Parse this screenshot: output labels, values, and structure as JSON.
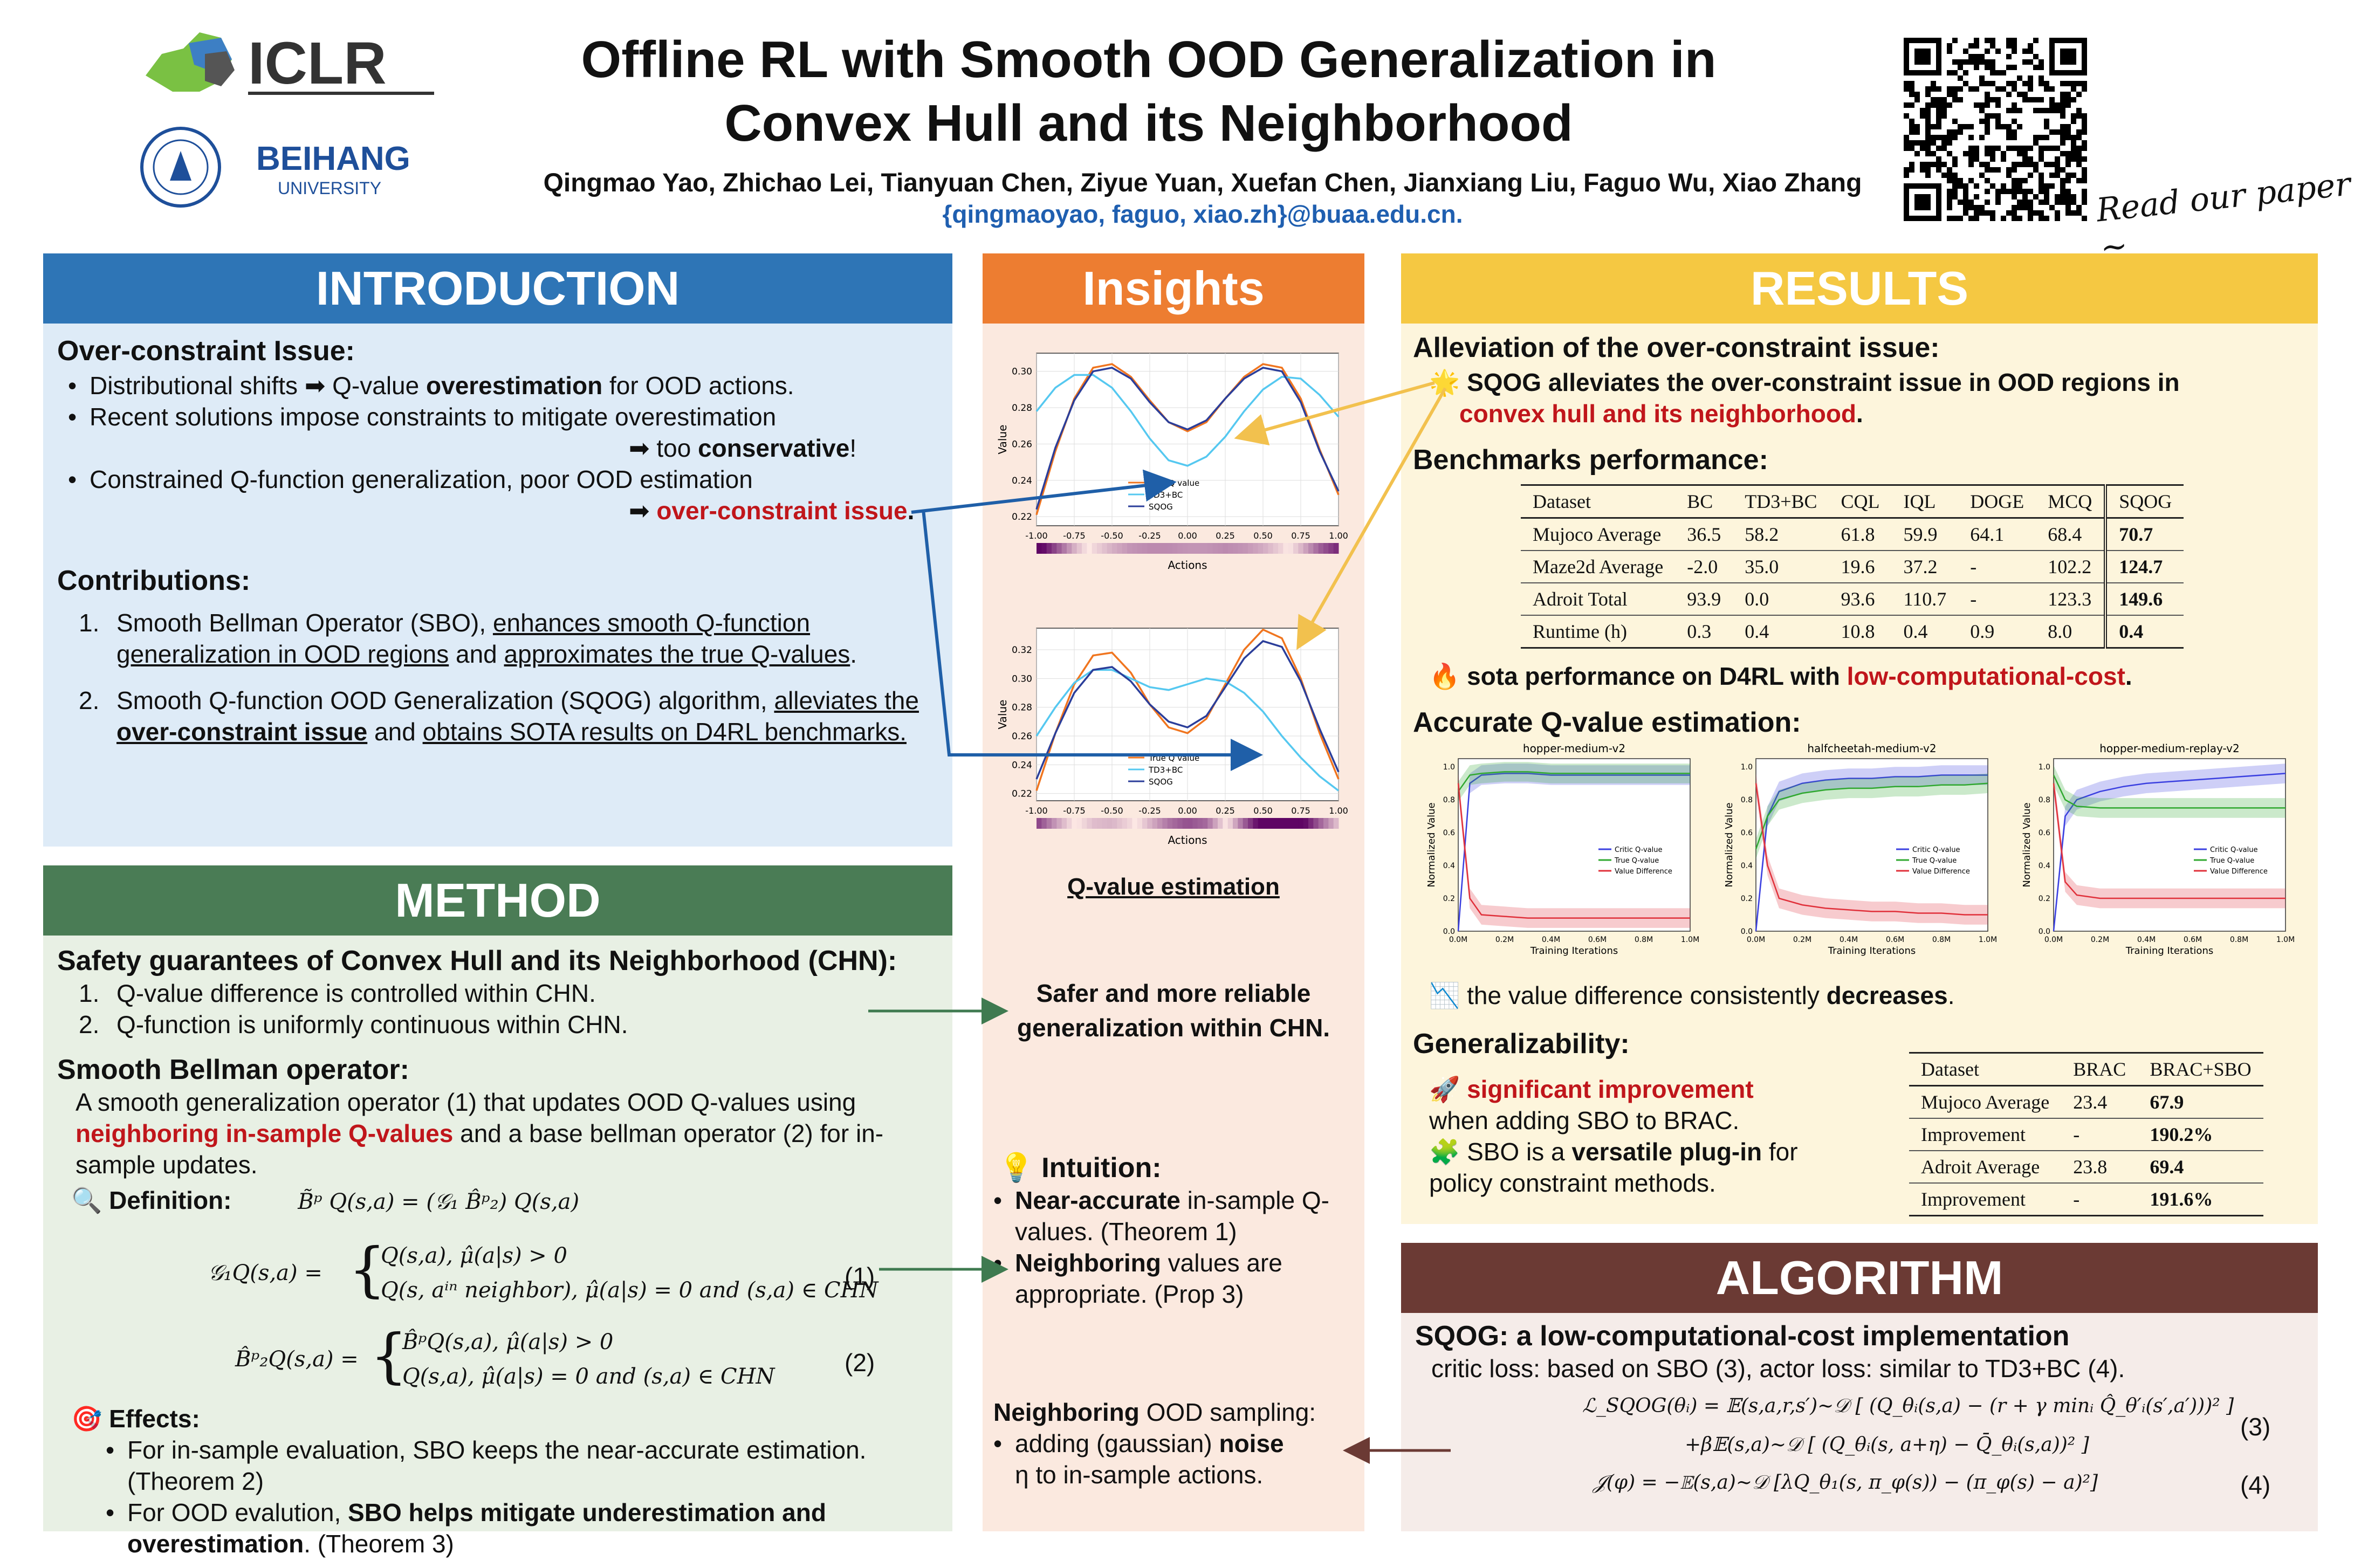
{
  "header": {
    "logo_iclr": "ICLR",
    "logo_beihang": "BEIHANG",
    "logo_beihang_sub": "UNIVERSITY",
    "title_line1": "Offline RL with Smooth OOD Generalization in",
    "title_line2": "Convex Hull and its Neighborhood",
    "authors": "Qingmao Yao, Zhichao Lei, Tianyuan Chen, Ziyue Yuan, Xuefan Chen, Jianxiang Liu, Faguo Wu, Xiao Zhang",
    "email": "{qingmaoyao, faguo, xiao.zh}@buaa.edu.cn.",
    "qr_caption": "Read our paper ~"
  },
  "intro": {
    "title": "INTRODUCTION",
    "issue_title": "Over-constraint Issue:",
    "b1_pre": "Distributional shifts ",
    "b1_post_pre": " Q-value ",
    "b1_bold": "overestimation",
    "b1_end": " for OOD actions.",
    "b2": "Recent solutions impose constraints to mitigate overestimation",
    "b2_arrow_pre": " too ",
    "b2_bold": "conservative",
    "b2_end": "!",
    "b3": "Constrained Q-function generalization, poor OOD estimation",
    "b3_red": "over-constraint issue",
    "b3_end": ".",
    "contrib_title": "Contributions:",
    "c1_n": "1.",
    "c1_a": "Smooth Bellman Operator (SBO), ",
    "c1_u1": "enhances smooth Q-function generalization in OOD regions",
    "c1_b": " and ",
    "c1_u2": "approximates the true Q-values",
    "c1_end": ".",
    "c2_n": "2.",
    "c2_a": "Smooth Q-function OOD Generalization (SQOG) algorithm, ",
    "c2_u1": "alleviates the ",
    "c2_u1b": "over-constraint issue",
    "c2_b": " and ",
    "c2_u2": "obtains SOTA results on D4RL benchmarks."
  },
  "method": {
    "title": "METHOD",
    "s1_title": "Safety guarantees of Convex Hull and its Neighborhood (CHN):",
    "s1_i1_n": "1.",
    "s1_i1": "Q-value difference is controlled within CHN.",
    "s1_i2_n": "2.",
    "s1_i2": "Q-function is uniformly continuous within CHN.",
    "s2_title": "Smooth Bellman operator:",
    "s2_p_a": "A smooth generalization operator (1) that updates OOD Q-values using ",
    "s2_p_red": "neighboring in-sample Q-values",
    "s2_p_b": " and a base bellman operator (2) for in-sample updates.",
    "def_label": "Definition:",
    "def_eq": "B̃ᵖ Q(s,a) = (𝒢₁ B̂ᵖ₂) Q(s,a)",
    "g1_lhs": "𝒢₁Q(s,a) =",
    "g1_c1": "Q(s,a),            μ̂(a|s) > 0",
    "g1_c2": "Q(s, aⁱⁿ neighbor), μ̂(a|s) = 0 and (s,a) ∈ CHN",
    "eq1_num": "(1)",
    "b2_lhs": "B̂ᵖ₂Q(s,a) =",
    "b2_c1": "B̂ᵖQ(s,a), μ̂(a|s) > 0",
    "b2_c2": "Q(s,a),      μ̂(a|s) = 0 and (s,a) ∈ CHN",
    "eq2_num": "(2)",
    "eff_title": "Effects:",
    "e1": "For in-sample evaluation, SBO keeps the near-accurate estimation. (Theorem 2)",
    "e2_a": "For OOD evalution, ",
    "e2_b": "SBO helps mitigate underestimation and overestimation",
    "e2_c": ". (Theorem 3)"
  },
  "insights": {
    "title": "Insights",
    "chart_caption": "Q-value estimation",
    "safer_l1": "Safer and more reliable",
    "safer_l2": "generalization within CHN.",
    "intuition_title": "Intuition:",
    "i1_b": "Near-accurate",
    "i1_t": " in-sample Q-values. (Theorem 1)",
    "i2_b": "Neighboring",
    "i2_t": " values are appropriate. (Prop 3)",
    "nb_b": "Neighboring",
    "nb_t": " OOD sampling:",
    "nb_i_a": "adding (gaussian) ",
    "nb_i_b": "noise",
    "nb_i_c": "η to in-sample actions."
  },
  "results": {
    "title": "RESULTS",
    "s1_title": "Alleviation of the over-constraint issue:",
    "s1_a": "SQOG alleviates the over-constraint issue in OOD regions in ",
    "s1_red": "convex hull and its neighborhood",
    "s1_end": ".",
    "s2_title": "Benchmarks performance:",
    "bench_header": [
      "Dataset",
      "BC",
      "TD3+BC",
      "CQL",
      "IQL",
      "DOGE",
      "MCQ",
      "SQOG"
    ],
    "bench_rows": [
      [
        "Mujoco Average",
        "36.5",
        "58.2",
        "61.8",
        "59.9",
        "64.1",
        "68.4",
        "70.7"
      ],
      [
        "Maze2d Average",
        "-2.0",
        "35.0",
        "19.6",
        "37.2",
        "-",
        "102.2",
        "124.7"
      ],
      [
        "Adroit Total",
        "93.9",
        "0.0",
        "93.6",
        "110.7",
        "-",
        "123.3",
        "149.6"
      ],
      [
        "Runtime (h)",
        "0.3",
        "0.4",
        "10.8",
        "0.4",
        "0.9",
        "8.0",
        "0.4"
      ]
    ],
    "sota_a": "sota performance on D4RL with ",
    "sota_red": "low-computational-cost",
    "sota_end": ".",
    "s3_title": "Accurate Q-value estimation:",
    "decr_a": "the value difference consistently ",
    "decr_b": "decreases",
    "decr_end": ".",
    "s4_title": "Generalizability:",
    "g1_red": "significant improvement",
    "g1_t": " when adding SBO to BRAC.",
    "g2_a": "SBO is a ",
    "g2_b": "versatile plug-in",
    "g2_c": " for policy constraint methods.",
    "gen_header": [
      "Dataset",
      "BRAC",
      "BRAC+SBO"
    ],
    "gen_rows": [
      [
        "Mujoco Average",
        "23.4",
        "67.9"
      ],
      [
        "Improvement",
        "-",
        "190.2%"
      ],
      [
        "Adroit Average",
        "23.8",
        "69.4"
      ],
      [
        "Improvement",
        "-",
        "191.6%"
      ]
    ]
  },
  "algorithm": {
    "title": "ALGORITHM",
    "s_title": "SQOG: a low-computational-cost implementation",
    "desc": "critic loss: based on SBO (3), actor loss: similar to TD3+BC (4).",
    "eq3a": "ℒ_SQOG(θᵢ) = 𝔼(s,a,r,s′)~𝒟 [ (Q_θᵢ(s,a) − (r + γ minᵢ Q̂_θ′ᵢ(s′,a′)))² ]",
    "eq3b": "+β𝔼(s,a)~𝒟 [ (Q_θᵢ(s, a+η) − Q̄_θᵢ(s,a))² ]",
    "eq3_num": "(3)",
    "eq4": "𝒥(φ) = −𝔼(s,a)~𝒟 [λQ_θ₁(s, π_φ(s)) − (π_φ(s) − a)²]",
    "eq4_num": "(4)"
  },
  "chart_data": [
    {
      "type": "line",
      "xlabel": "Actions",
      "ylabel": "Value",
      "xlim": [
        -1.0,
        1.0
      ],
      "ylim": [
        0.215,
        0.31
      ],
      "xticks": [
        "-1.00",
        "-0.75",
        "-0.50",
        "-0.25",
        "0.00",
        "0.25",
        "0.50",
        "0.75",
        "1.00"
      ],
      "yticks": [
        "0.22",
        "0.24",
        "0.26",
        "0.28",
        "0.30"
      ],
      "x": [
        -1.0,
        -0.875,
        -0.75,
        -0.625,
        -0.5,
        -0.375,
        -0.25,
        -0.125,
        0.0,
        0.125,
        0.25,
        0.375,
        0.5,
        0.625,
        0.75,
        0.875,
        1.0
      ],
      "series": [
        {
          "name": "True Q value",
          "color": "#f0751f",
          "values": [
            0.221,
            0.256,
            0.285,
            0.302,
            0.304,
            0.297,
            0.284,
            0.272,
            0.267,
            0.272,
            0.285,
            0.297,
            0.304,
            0.302,
            0.285,
            0.257,
            0.232
          ]
        },
        {
          "name": "TD3+BC",
          "color": "#55c8f0",
          "values": [
            0.278,
            0.291,
            0.298,
            0.298,
            0.291,
            0.278,
            0.263,
            0.251,
            0.248,
            0.253,
            0.264,
            0.278,
            0.29,
            0.297,
            0.296,
            0.287,
            0.275
          ]
        },
        {
          "name": "SQOG",
          "color": "#2b3e9a",
          "values": [
            0.224,
            0.258,
            0.284,
            0.3,
            0.302,
            0.296,
            0.283,
            0.272,
            0.268,
            0.273,
            0.285,
            0.296,
            0.302,
            0.3,
            0.283,
            0.256,
            0.234
          ]
        }
      ]
    },
    {
      "type": "line",
      "xlabel": "Actions",
      "ylabel": "Value",
      "xlim": [
        -1.0,
        1.0
      ],
      "ylim": [
        0.215,
        0.335
      ],
      "xticks": [
        "-1.00",
        "-0.75",
        "-0.50",
        "-0.25",
        "0.00",
        "0.25",
        "0.50",
        "0.75",
        "1.00"
      ],
      "yticks": [
        "0.22",
        "0.24",
        "0.26",
        "0.28",
        "0.30",
        "0.32"
      ],
      "x": [
        -1.0,
        -0.875,
        -0.75,
        -0.625,
        -0.5,
        -0.375,
        -0.25,
        -0.125,
        0.0,
        0.125,
        0.25,
        0.375,
        0.5,
        0.625,
        0.75,
        0.875,
        1.0
      ],
      "series": [
        {
          "name": "True Q value",
          "color": "#f0751f",
          "values": [
            0.222,
            0.262,
            0.296,
            0.316,
            0.318,
            0.304,
            0.282,
            0.266,
            0.262,
            0.272,
            0.296,
            0.32,
            0.334,
            0.328,
            0.3,
            0.262,
            0.23
          ]
        },
        {
          "name": "TD3+BC",
          "color": "#55c8f0",
          "values": [
            0.26,
            0.28,
            0.297,
            0.306,
            0.306,
            0.3,
            0.294,
            0.292,
            0.296,
            0.3,
            0.298,
            0.29,
            0.277,
            0.26,
            0.245,
            0.232,
            0.222
          ]
        },
        {
          "name": "SQOG",
          "color": "#2b3e9a",
          "values": [
            0.23,
            0.262,
            0.29,
            0.306,
            0.308,
            0.298,
            0.282,
            0.27,
            0.266,
            0.274,
            0.294,
            0.314,
            0.326,
            0.322,
            0.298,
            0.265,
            0.235
          ]
        }
      ]
    },
    {
      "type": "line",
      "title": "hopper-medium-v2",
      "xlabel": "Training Iterations",
      "ylabel": "Normalized Value",
      "xticks": [
        "0.0M",
        "0.2M",
        "0.4M",
        "0.6M",
        "0.8M",
        "1.0M"
      ],
      "yticks": [
        "0.0",
        "0.2",
        "0.4",
        "0.6",
        "0.8",
        "1.0"
      ],
      "ylim": [
        0,
        1.05
      ],
      "x": [
        0,
        0.05,
        0.1,
        0.2,
        0.3,
        0.4,
        0.5,
        0.6,
        0.7,
        0.8,
        0.9,
        1.0
      ],
      "series": [
        {
          "name": "Critic Q-value",
          "color": "#3a3fe0",
          "values": [
            0.0,
            0.9,
            0.95,
            0.96,
            0.96,
            0.95,
            0.95,
            0.95,
            0.95,
            0.95,
            0.95,
            0.95
          ]
        },
        {
          "name": "True Q-value",
          "color": "#2fa82f",
          "values": [
            0.85,
            0.95,
            0.96,
            0.97,
            0.97,
            0.96,
            0.96,
            0.96,
            0.96,
            0.96,
            0.96,
            0.96
          ]
        },
        {
          "name": "Value Difference",
          "color": "#e0303a",
          "values": [
            0.9,
            0.2,
            0.1,
            0.09,
            0.08,
            0.08,
            0.08,
            0.08,
            0.08,
            0.08,
            0.08,
            0.08
          ]
        }
      ]
    },
    {
      "type": "line",
      "title": "halfcheetah-medium-v2",
      "xlabel": "Training Iterations",
      "ylabel": "Normalized Value",
      "xticks": [
        "0.0M",
        "0.2M",
        "0.4M",
        "0.6M",
        "0.8M",
        "1.0M"
      ],
      "yticks": [
        "0.0",
        "0.2",
        "0.4",
        "0.6",
        "0.8",
        "1.0"
      ],
      "ylim": [
        0,
        1.05
      ],
      "x": [
        0,
        0.05,
        0.1,
        0.2,
        0.3,
        0.4,
        0.5,
        0.6,
        0.7,
        0.8,
        0.9,
        1.0
      ],
      "series": [
        {
          "name": "Critic Q-value",
          "color": "#3a3fe0",
          "values": [
            0.0,
            0.7,
            0.85,
            0.9,
            0.92,
            0.93,
            0.93,
            0.94,
            0.94,
            0.95,
            0.95,
            0.95
          ]
        },
        {
          "name": "True Q-value",
          "color": "#2fa82f",
          "values": [
            0.5,
            0.7,
            0.8,
            0.84,
            0.86,
            0.87,
            0.87,
            0.88,
            0.88,
            0.89,
            0.89,
            0.9
          ]
        },
        {
          "name": "Value Difference",
          "color": "#e0303a",
          "values": [
            0.9,
            0.4,
            0.2,
            0.16,
            0.14,
            0.13,
            0.12,
            0.12,
            0.11,
            0.11,
            0.1,
            0.1
          ]
        }
      ]
    },
    {
      "type": "line",
      "title": "hopper-medium-replay-v2",
      "xlabel": "Training Iterations",
      "ylabel": "Normalized Value",
      "xticks": [
        "0.0M",
        "0.2M",
        "0.4M",
        "0.6M",
        "0.8M",
        "1.0M"
      ],
      "yticks": [
        "0.0",
        "0.2",
        "0.4",
        "0.6",
        "0.8",
        "1.0"
      ],
      "ylim": [
        0,
        1.05
      ],
      "x": [
        0,
        0.05,
        0.1,
        0.2,
        0.3,
        0.4,
        0.5,
        0.6,
        0.7,
        0.8,
        0.9,
        1.0
      ],
      "series": [
        {
          "name": "Critic Q-value",
          "color": "#3a3fe0",
          "values": [
            0.0,
            0.7,
            0.8,
            0.85,
            0.88,
            0.9,
            0.91,
            0.92,
            0.93,
            0.94,
            0.95,
            0.96
          ]
        },
        {
          "name": "True Q-value",
          "color": "#2fa82f",
          "values": [
            0.95,
            0.8,
            0.76,
            0.75,
            0.75,
            0.75,
            0.75,
            0.75,
            0.75,
            0.75,
            0.75,
            0.75
          ]
        },
        {
          "name": "Value Difference",
          "color": "#e0303a",
          "values": [
            0.9,
            0.3,
            0.22,
            0.2,
            0.2,
            0.2,
            0.2,
            0.2,
            0.2,
            0.2,
            0.2,
            0.2
          ]
        }
      ]
    }
  ]
}
